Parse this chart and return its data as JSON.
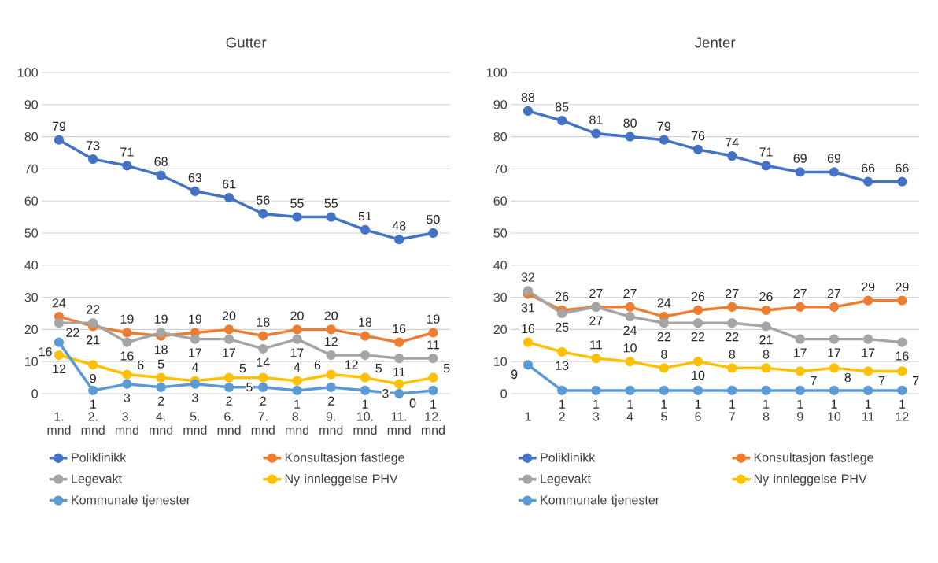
{
  "chart_data": [
    {
      "type": "line",
      "title": "Gutter",
      "categories": [
        "1. mnd",
        "2. mnd",
        "3. mnd",
        "4. mnd",
        "5. mnd",
        "6. mnd",
        "7. mnd",
        "8. mnd",
        "9. mnd",
        "10. mnd",
        "11. mnd",
        "12. mnd"
      ],
      "series": [
        {
          "name": "Poliklinikk",
          "color": "#4472c4",
          "values": [
            79,
            73,
            71,
            68,
            63,
            61,
            56,
            55,
            55,
            51,
            48,
            50
          ]
        },
        {
          "name": "Konsultasjon fastlege",
          "color": "#ed7d31",
          "values": [
            24,
            21,
            19,
            18,
            19,
            20,
            18,
            20,
            20,
            18,
            16,
            19
          ]
        },
        {
          "name": "Legevakt",
          "color": "#a5a5a5",
          "values": [
            22,
            22,
            16,
            19,
            17,
            17,
            14,
            17,
            12,
            12,
            11,
            11
          ]
        },
        {
          "name": "Ny innleggelse PHV",
          "color": "#ffc000",
          "values": [
            12,
            9,
            6,
            5,
            4,
            5,
            5,
            4,
            6,
            5,
            3,
            5
          ]
        },
        {
          "name": "Kommunale tjenester",
          "color": "#5b9bd5",
          "values": [
            16,
            1,
            3,
            2,
            3,
            2,
            2,
            1,
            2,
            1,
            0,
            1
          ]
        }
      ],
      "ylim": [
        0,
        100
      ],
      "yticks": [
        0,
        10,
        20,
        30,
        40,
        50,
        60,
        70,
        80,
        90,
        100
      ],
      "grid": "y",
      "legend": "bottom",
      "marker": "circle",
      "line_style": "solid",
      "data_labels": true
    },
    {
      "type": "line",
      "title": "Jenter",
      "categories": [
        "1",
        "2",
        "3",
        "4",
        "5",
        "6",
        "7",
        "8",
        "9",
        "10",
        "11",
        "12"
      ],
      "series": [
        {
          "name": "Poliklinikk",
          "color": "#4472c4",
          "values": [
            88,
            85,
            81,
            80,
            79,
            76,
            74,
            71,
            69,
            69,
            66,
            66
          ]
        },
        {
          "name": "Konsultasjon fastlege",
          "color": "#ed7d31",
          "values": [
            31,
            26,
            27,
            27,
            24,
            26,
            27,
            26,
            27,
            27,
            29,
            29
          ]
        },
        {
          "name": "Legevakt",
          "color": "#a5a5a5",
          "values": [
            32,
            25,
            27,
            24,
            22,
            22,
            22,
            21,
            17,
            17,
            17,
            16
          ]
        },
        {
          "name": "Ny innleggelse PHV",
          "color": "#ffc000",
          "values": [
            16,
            13,
            11,
            10,
            8,
            10,
            8,
            8,
            7,
            8,
            7,
            7
          ]
        },
        {
          "name": "Kommunale tjenester",
          "color": "#5b9bd5",
          "values": [
            9,
            1,
            1,
            1,
            1,
            1,
            1,
            1,
            1,
            1,
            1,
            1
          ]
        }
      ],
      "ylim": [
        0,
        100
      ],
      "yticks": [
        0,
        10,
        20,
        30,
        40,
        50,
        60,
        70,
        80,
        90,
        100
      ],
      "grid": "y",
      "legend": "bottom",
      "marker": "circle",
      "line_style": "solid",
      "data_labels": true
    }
  ]
}
